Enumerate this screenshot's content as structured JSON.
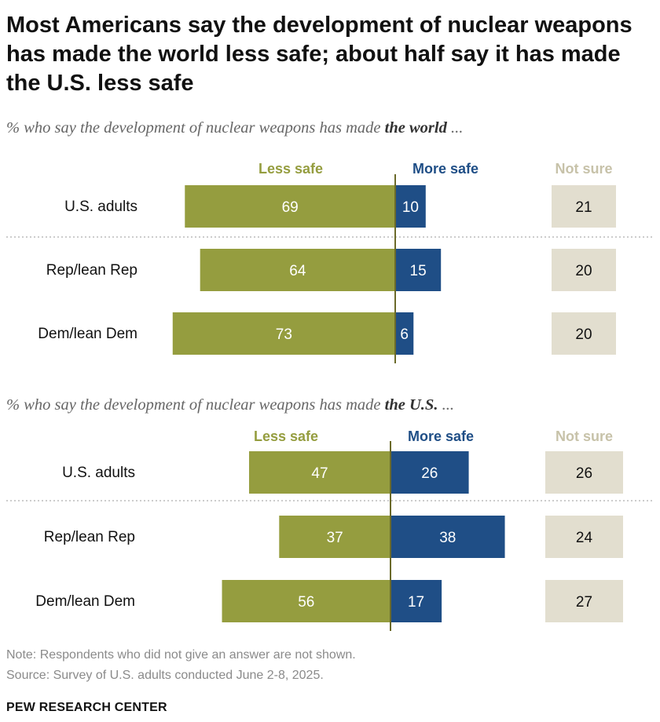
{
  "title": "Most Americans say the development of nuclear weapons has made the world less safe; about half say it has made the U.S. less safe",
  "colors": {
    "less_safe": "#959d3f",
    "more_safe": "#1f4e86",
    "not_sure_fill": "#e2decf",
    "not_sure_label": "#c7c2a9",
    "divider": "#bbbbbb",
    "center_line": "#6b6a2a"
  },
  "chart_data": [
    {
      "type": "bar",
      "subtitle_pre": "% who say the development of nuclear weapons has made ",
      "subtitle_emph": "the world",
      "subtitle_post": " ...",
      "legend": [
        "Less safe",
        "More safe",
        "Not sure"
      ],
      "categories": [
        "U.S. adults",
        "Rep/lean Rep",
        "Dem/lean Dem"
      ],
      "series": [
        {
          "name": "Less safe",
          "values": [
            69,
            64,
            73
          ]
        },
        {
          "name": "More safe",
          "values": [
            10,
            15,
            6
          ]
        },
        {
          "name": "Not sure",
          "values": [
            21,
            20,
            20
          ]
        }
      ]
    },
    {
      "type": "bar",
      "subtitle_pre": "% who say the development of nuclear weapons has made ",
      "subtitle_emph": "the U.S.",
      "subtitle_post": " ...",
      "legend": [
        "Less safe",
        "More safe",
        "Not sure"
      ],
      "categories": [
        "U.S. adults",
        "Rep/lean Rep",
        "Dem/lean Dem"
      ],
      "series": [
        {
          "name": "Less safe",
          "values": [
            47,
            37,
            56
          ]
        },
        {
          "name": "More safe",
          "values": [
            26,
            38,
            17
          ]
        },
        {
          "name": "Not sure",
          "values": [
            26,
            24,
            27
          ]
        }
      ]
    }
  ],
  "note": "Note: Respondents who did not give an answer are not shown.",
  "source": "Source: Survey of U.S. adults conducted June 2-8, 2025.",
  "org": "PEW RESEARCH CENTER"
}
